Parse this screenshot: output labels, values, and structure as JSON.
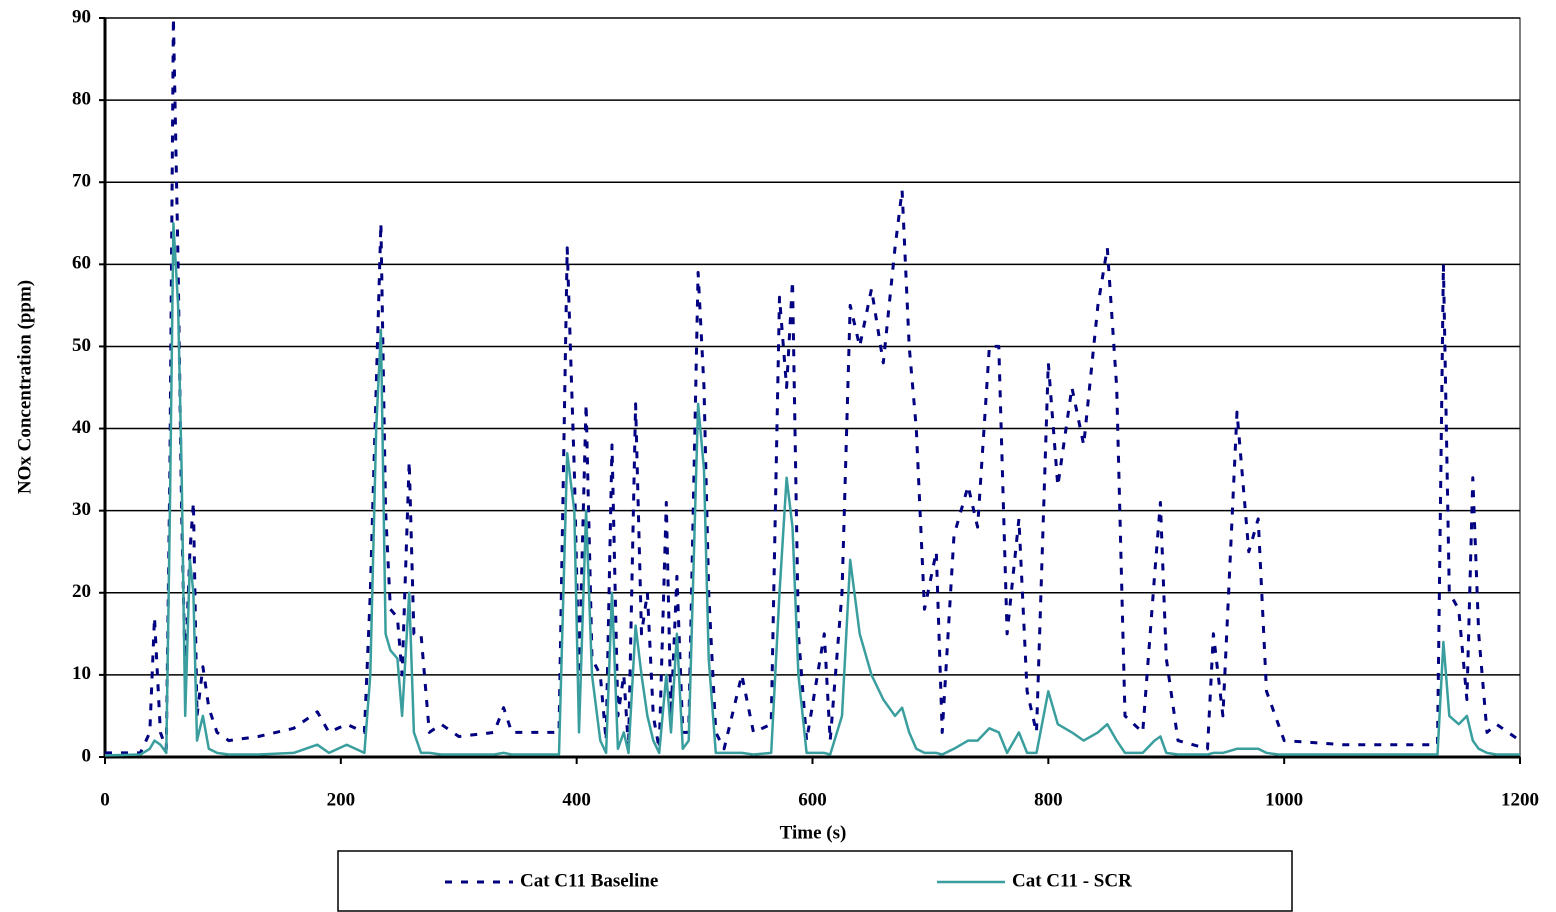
{
  "chart_data": {
    "type": "line",
    "xlabel": "Time (s)",
    "ylabel": "NOx Concentration (ppm)",
    "xlim": [
      0,
      1200
    ],
    "xticks": [
      0,
      200,
      400,
      600,
      800,
      1000,
      1200
    ],
    "ylim": [
      0,
      90
    ],
    "yticks": [
      0,
      10,
      20,
      30,
      40,
      50,
      60,
      70,
      80,
      90
    ],
    "grid": true,
    "x": [
      0,
      30,
      38,
      42,
      47,
      52,
      55,
      58,
      62,
      65,
      68,
      72,
      75,
      78,
      83,
      88,
      95,
      105,
      130,
      160,
      180,
      190,
      205,
      220,
      225,
      230,
      234,
      238,
      242,
      248,
      252,
      258,
      262,
      268,
      275,
      285,
      300,
      330,
      338,
      345,
      385,
      392,
      398,
      402,
      408,
      413,
      420,
      425,
      430,
      435,
      440,
      444,
      450,
      455,
      460,
      465,
      470,
      476,
      480,
      485,
      490,
      495,
      503,
      508,
      512,
      518,
      525,
      540,
      550,
      565,
      572,
      578,
      583,
      588,
      595,
      610,
      615,
      625,
      632,
      640,
      650,
      660,
      670,
      676,
      682,
      688,
      695,
      705,
      710,
      720,
      732,
      740,
      750,
      758,
      765,
      775,
      782,
      790,
      800,
      808,
      820,
      830,
      842,
      850,
      858,
      865,
      880,
      890,
      895,
      900,
      910,
      935,
      940,
      948,
      960,
      970,
      978,
      985,
      995,
      1000,
      1050,
      1080,
      1130,
      1135,
      1140,
      1148,
      1155,
      1160,
      1165,
      1172,
      1180,
      1200
    ],
    "series": [
      {
        "name": "Cat C11 Baseline",
        "color": "#000080",
        "dashed": true,
        "values": [
          0.5,
          0.5,
          3,
          17,
          3,
          1,
          35,
          90,
          60,
          30,
          10,
          25,
          31,
          5,
          11,
          6,
          3,
          2,
          2.5,
          3.5,
          5.5,
          3,
          4,
          3,
          20,
          45,
          65,
          30,
          18,
          17,
          10,
          36,
          15,
          15,
          3,
          4,
          2.5,
          3,
          6,
          3,
          3,
          62,
          35,
          10,
          43,
          12,
          10,
          2,
          38,
          5,
          10,
          1,
          43,
          15,
          20,
          5,
          1,
          31,
          5,
          22,
          3,
          3,
          59,
          45,
          20,
          3,
          1,
          10,
          3,
          4,
          56,
          45,
          58,
          15,
          2,
          15,
          2,
          20,
          55,
          50,
          57,
          48,
          62,
          69,
          50,
          40,
          18,
          25,
          3,
          27,
          33,
          28,
          50,
          50,
          15,
          29,
          8,
          3,
          48,
          33,
          45,
          38,
          55,
          62,
          45,
          5,
          3,
          22,
          31,
          12,
          2,
          1,
          15,
          5,
          42,
          25,
          29,
          8,
          4,
          2,
          1.5,
          1.5,
          1.5,
          60,
          20,
          18,
          7,
          34,
          15,
          3,
          4,
          2
        ]
      },
      {
        "name": "Cat C11 - SCR",
        "color": "#3a9e9e",
        "dashed": false,
        "values": [
          0.2,
          0.3,
          1,
          2,
          1.5,
          0.5,
          30,
          65,
          55,
          35,
          5,
          24,
          20,
          2,
          5,
          1,
          0.5,
          0.3,
          0.3,
          0.5,
          1.5,
          0.5,
          1.5,
          0.5,
          10,
          40,
          52,
          15,
          13,
          12,
          5,
          20,
          3,
          0.5,
          0.5,
          0.3,
          0.3,
          0.3,
          0.5,
          0.3,
          0.3,
          37,
          30,
          3,
          30,
          10,
          2,
          0.5,
          20,
          1,
          3,
          0.5,
          16,
          10,
          5,
          2,
          0.5,
          10,
          3,
          15,
          1,
          2,
          43,
          35,
          12,
          0.5,
          0.5,
          0.5,
          0.3,
          0.5,
          20,
          34,
          28,
          10,
          0.5,
          0.5,
          0.3,
          5,
          24,
          15,
          10,
          7,
          5,
          6,
          3,
          1,
          0.5,
          0.5,
          0.3,
          1,
          2,
          2,
          3.5,
          3,
          0.5,
          3,
          0.5,
          0.5,
          8,
          4,
          3,
          2,
          3,
          4,
          2,
          0.5,
          0.5,
          2,
          2.5,
          0.5,
          0.3,
          0.3,
          0.5,
          0.5,
          1,
          1,
          1,
          0.5,
          0.3,
          0.3,
          0.3,
          0.3,
          0.3,
          14,
          5,
          4,
          5,
          2,
          1,
          0.5,
          0.3,
          0.3
        ]
      }
    ]
  }
}
